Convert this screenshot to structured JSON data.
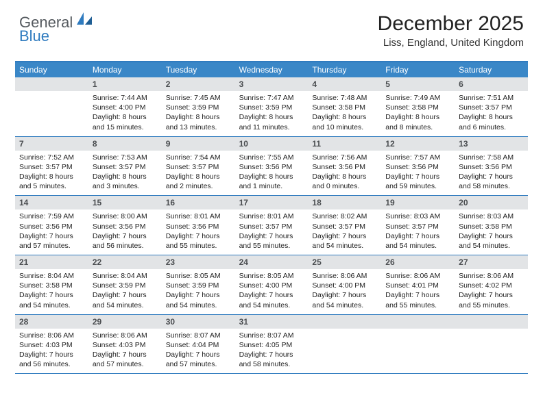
{
  "brand": {
    "part1": "General",
    "part2": "Blue"
  },
  "title": "December 2025",
  "location": "Liss, England, United Kingdom",
  "colors": {
    "header_bg": "#3a87c7",
    "border": "#2f7bbf",
    "daynum_bg": "#e2e4e6",
    "text": "#222222",
    "brand_gray": "#555a5f",
    "brand_blue": "#2f7bbf"
  },
  "day_labels": [
    "Sunday",
    "Monday",
    "Tuesday",
    "Wednesday",
    "Thursday",
    "Friday",
    "Saturday"
  ],
  "weeks": [
    [
      {
        "n": "",
        "sr": "",
        "ss": "",
        "dl": ""
      },
      {
        "n": "1",
        "sr": "Sunrise: 7:44 AM",
        "ss": "Sunset: 4:00 PM",
        "dl": "Daylight: 8 hours and 15 minutes."
      },
      {
        "n": "2",
        "sr": "Sunrise: 7:45 AM",
        "ss": "Sunset: 3:59 PM",
        "dl": "Daylight: 8 hours and 13 minutes."
      },
      {
        "n": "3",
        "sr": "Sunrise: 7:47 AM",
        "ss": "Sunset: 3:59 PM",
        "dl": "Daylight: 8 hours and 11 minutes."
      },
      {
        "n": "4",
        "sr": "Sunrise: 7:48 AM",
        "ss": "Sunset: 3:58 PM",
        "dl": "Daylight: 8 hours and 10 minutes."
      },
      {
        "n": "5",
        "sr": "Sunrise: 7:49 AM",
        "ss": "Sunset: 3:58 PM",
        "dl": "Daylight: 8 hours and 8 minutes."
      },
      {
        "n": "6",
        "sr": "Sunrise: 7:51 AM",
        "ss": "Sunset: 3:57 PM",
        "dl": "Daylight: 8 hours and 6 minutes."
      }
    ],
    [
      {
        "n": "7",
        "sr": "Sunrise: 7:52 AM",
        "ss": "Sunset: 3:57 PM",
        "dl": "Daylight: 8 hours and 5 minutes."
      },
      {
        "n": "8",
        "sr": "Sunrise: 7:53 AM",
        "ss": "Sunset: 3:57 PM",
        "dl": "Daylight: 8 hours and 3 minutes."
      },
      {
        "n": "9",
        "sr": "Sunrise: 7:54 AM",
        "ss": "Sunset: 3:57 PM",
        "dl": "Daylight: 8 hours and 2 minutes."
      },
      {
        "n": "10",
        "sr": "Sunrise: 7:55 AM",
        "ss": "Sunset: 3:56 PM",
        "dl": "Daylight: 8 hours and 1 minute."
      },
      {
        "n": "11",
        "sr": "Sunrise: 7:56 AM",
        "ss": "Sunset: 3:56 PM",
        "dl": "Daylight: 8 hours and 0 minutes."
      },
      {
        "n": "12",
        "sr": "Sunrise: 7:57 AM",
        "ss": "Sunset: 3:56 PM",
        "dl": "Daylight: 7 hours and 59 minutes."
      },
      {
        "n": "13",
        "sr": "Sunrise: 7:58 AM",
        "ss": "Sunset: 3:56 PM",
        "dl": "Daylight: 7 hours and 58 minutes."
      }
    ],
    [
      {
        "n": "14",
        "sr": "Sunrise: 7:59 AM",
        "ss": "Sunset: 3:56 PM",
        "dl": "Daylight: 7 hours and 57 minutes."
      },
      {
        "n": "15",
        "sr": "Sunrise: 8:00 AM",
        "ss": "Sunset: 3:56 PM",
        "dl": "Daylight: 7 hours and 56 minutes."
      },
      {
        "n": "16",
        "sr": "Sunrise: 8:01 AM",
        "ss": "Sunset: 3:56 PM",
        "dl": "Daylight: 7 hours and 55 minutes."
      },
      {
        "n": "17",
        "sr": "Sunrise: 8:01 AM",
        "ss": "Sunset: 3:57 PM",
        "dl": "Daylight: 7 hours and 55 minutes."
      },
      {
        "n": "18",
        "sr": "Sunrise: 8:02 AM",
        "ss": "Sunset: 3:57 PM",
        "dl": "Daylight: 7 hours and 54 minutes."
      },
      {
        "n": "19",
        "sr": "Sunrise: 8:03 AM",
        "ss": "Sunset: 3:57 PM",
        "dl": "Daylight: 7 hours and 54 minutes."
      },
      {
        "n": "20",
        "sr": "Sunrise: 8:03 AM",
        "ss": "Sunset: 3:58 PM",
        "dl": "Daylight: 7 hours and 54 minutes."
      }
    ],
    [
      {
        "n": "21",
        "sr": "Sunrise: 8:04 AM",
        "ss": "Sunset: 3:58 PM",
        "dl": "Daylight: 7 hours and 54 minutes."
      },
      {
        "n": "22",
        "sr": "Sunrise: 8:04 AM",
        "ss": "Sunset: 3:59 PM",
        "dl": "Daylight: 7 hours and 54 minutes."
      },
      {
        "n": "23",
        "sr": "Sunrise: 8:05 AM",
        "ss": "Sunset: 3:59 PM",
        "dl": "Daylight: 7 hours and 54 minutes."
      },
      {
        "n": "24",
        "sr": "Sunrise: 8:05 AM",
        "ss": "Sunset: 4:00 PM",
        "dl": "Daylight: 7 hours and 54 minutes."
      },
      {
        "n": "25",
        "sr": "Sunrise: 8:06 AM",
        "ss": "Sunset: 4:00 PM",
        "dl": "Daylight: 7 hours and 54 minutes."
      },
      {
        "n": "26",
        "sr": "Sunrise: 8:06 AM",
        "ss": "Sunset: 4:01 PM",
        "dl": "Daylight: 7 hours and 55 minutes."
      },
      {
        "n": "27",
        "sr": "Sunrise: 8:06 AM",
        "ss": "Sunset: 4:02 PM",
        "dl": "Daylight: 7 hours and 55 minutes."
      }
    ],
    [
      {
        "n": "28",
        "sr": "Sunrise: 8:06 AM",
        "ss": "Sunset: 4:03 PM",
        "dl": "Daylight: 7 hours and 56 minutes."
      },
      {
        "n": "29",
        "sr": "Sunrise: 8:06 AM",
        "ss": "Sunset: 4:03 PM",
        "dl": "Daylight: 7 hours and 57 minutes."
      },
      {
        "n": "30",
        "sr": "Sunrise: 8:07 AM",
        "ss": "Sunset: 4:04 PM",
        "dl": "Daylight: 7 hours and 57 minutes."
      },
      {
        "n": "31",
        "sr": "Sunrise: 8:07 AM",
        "ss": "Sunset: 4:05 PM",
        "dl": "Daylight: 7 hours and 58 minutes."
      },
      {
        "n": "",
        "sr": "",
        "ss": "",
        "dl": ""
      },
      {
        "n": "",
        "sr": "",
        "ss": "",
        "dl": ""
      },
      {
        "n": "",
        "sr": "",
        "ss": "",
        "dl": ""
      }
    ]
  ]
}
